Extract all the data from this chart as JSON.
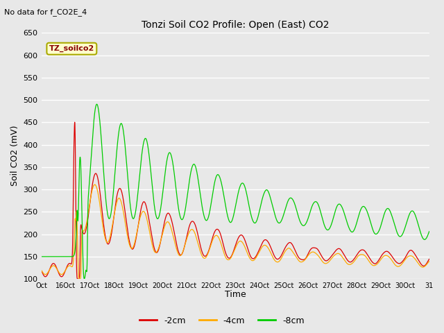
{
  "title": "Tonzi Soil CO2 Profile: Open (East) CO2",
  "subtitle": "No data for f_CO2E_4",
  "ylabel": "Soil CO2 (mV)",
  "xlabel": "Time",
  "legend_label": "TZ_soilco2",
  "series_labels": [
    "-2cm",
    "-4cm",
    "-8cm"
  ],
  "series_colors": [
    "#dd0000",
    "#ffaa00",
    "#00cc00"
  ],
  "ylim": [
    100,
    650
  ],
  "background_color": "#e8e8e8",
  "grid_color": "#ffffff",
  "xtick_labels": [
    "Oct",
    "16Oct",
    "17Oct",
    "18Oct",
    "19Oct",
    "20Oct",
    "21Oct",
    "22Oct",
    "23Oct",
    "24Oct",
    "25Oct",
    "26Oct",
    "27Oct",
    "28Oct",
    "29Oct",
    "30Oct",
    "31"
  ]
}
